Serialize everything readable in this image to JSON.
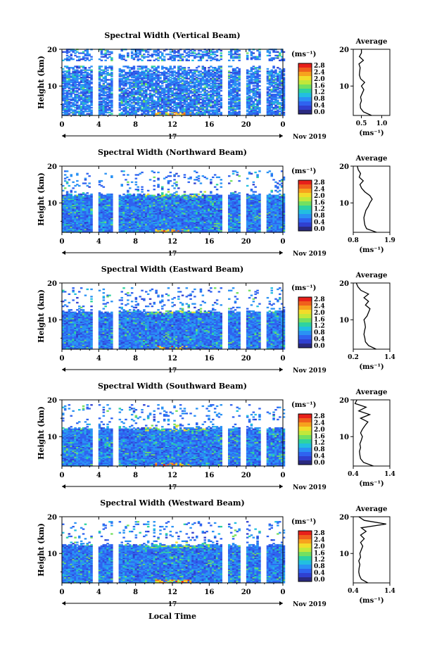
{
  "figure": {
    "xlabel": "Local Time",
    "date_label": "Nov 2019",
    "day_label": "17",
    "ylabel": "Height (km)",
    "cb_unit": "(ms⁻¹)",
    "cb_ticks": [
      "0.0",
      "0.4",
      "0.8",
      "1.2",
      "1.6",
      "2.0",
      "2.4",
      "2.8"
    ],
    "avg_title": "Average",
    "avg_unit": "(ms⁻¹)",
    "x_ticks": [
      "0",
      "4",
      "8",
      "12",
      "16",
      "20",
      "0"
    ],
    "y_ticks": [
      "10",
      "20"
    ],
    "colors": [
      "#2a2a80",
      "#3040d0",
      "#2f63f0",
      "#2a92f4",
      "#22bfe0",
      "#2ed3a0",
      "#74e060",
      "#c2e83a",
      "#f2dc2a",
      "#f7a21e",
      "#f0601c",
      "#e8201a"
    ]
  },
  "chart_data": [
    {
      "type": "heatmap",
      "title": "Spectral Width (Vertical Beam)",
      "xlim": [
        0,
        24
      ],
      "ylim": [
        2,
        20
      ],
      "value_range": [
        0.0,
        3.0
      ],
      "data_gaps_hours": [
        3.5,
        5.7,
        17.6,
        19.6,
        21.8
      ],
      "average_profile": {
        "xlim": [
          0.3,
          1.2
        ],
        "xticks": [
          "0.5",
          "1.0"
        ],
        "height_km": [
          2,
          3,
          4,
          5,
          6,
          7,
          8,
          9,
          10,
          11,
          12,
          13,
          14,
          15,
          16,
          17,
          18,
          19,
          20
        ],
        "value": [
          0.75,
          0.55,
          0.48,
          0.47,
          0.5,
          0.48,
          0.52,
          0.56,
          0.5,
          0.58,
          0.48,
          0.45,
          0.46,
          0.47,
          0.44,
          0.55,
          0.45,
          0.5,
          0.5
        ]
      }
    },
    {
      "type": "heatmap",
      "title": "Spectral Width (Northward Beam)",
      "xlim": [
        0,
        24
      ],
      "ylim": [
        2,
        20
      ],
      "value_range": [
        0.0,
        3.0
      ],
      "data_gaps_hours": [
        3.5,
        5.7,
        17.6,
        19.6,
        21.8
      ],
      "average_profile": {
        "xlim": [
          0.8,
          1.9
        ],
        "xticks": [
          "0.8",
          "1.9"
        ],
        "height_km": [
          2,
          3,
          4,
          5,
          6,
          7,
          8,
          9,
          10,
          11,
          12,
          13,
          14,
          15,
          16,
          17,
          18,
          19,
          20
        ],
        "value": [
          1.5,
          1.2,
          1.15,
          1.13,
          1.12,
          1.15,
          1.18,
          1.25,
          1.3,
          1.37,
          1.3,
          1.15,
          1.05,
          1.0,
          1.1,
          0.98,
          1.02,
          0.95,
          0.92
        ]
      }
    },
    {
      "type": "heatmap",
      "title": "Spectral Width (Eastward Beam)",
      "xlim": [
        0,
        24
      ],
      "ylim": [
        2,
        20
      ],
      "value_range": [
        0.0,
        3.0
      ],
      "data_gaps_hours": [
        3.5,
        5.7,
        17.6,
        19.6,
        21.8
      ],
      "average_profile": {
        "xlim": [
          0.2,
          1.4
        ],
        "xticks": [
          "0.2",
          "1.4"
        ],
        "height_km": [
          2,
          3,
          4,
          5,
          6,
          7,
          8,
          9,
          10,
          11,
          12,
          13,
          14,
          15,
          16,
          17,
          18,
          19,
          20
        ],
        "value": [
          0.95,
          0.7,
          0.6,
          0.58,
          0.55,
          0.57,
          0.6,
          0.58,
          0.55,
          0.65,
          0.7,
          0.75,
          0.6,
          0.7,
          0.55,
          0.7,
          0.45,
          0.35,
          0.3
        ]
      }
    },
    {
      "type": "heatmap",
      "title": "Spectral Width (Southward Beam)",
      "xlim": [
        0,
        24
      ],
      "ylim": [
        2,
        20
      ],
      "value_range": [
        0.0,
        3.0
      ],
      "data_gaps_hours": [
        3.5,
        5.7,
        17.6,
        19.6,
        21.8
      ],
      "average_profile": {
        "xlim": [
          0.4,
          1.4
        ],
        "xticks": [
          "0.4",
          "1.4"
        ],
        "height_km": [
          2,
          3,
          4,
          5,
          6,
          7,
          8,
          9,
          10,
          11,
          12,
          13,
          14,
          15,
          16,
          17,
          18,
          19,
          20
        ],
        "value": [
          0.95,
          0.68,
          0.6,
          0.58,
          0.57,
          0.6,
          0.58,
          0.62,
          0.65,
          0.6,
          0.65,
          0.72,
          0.8,
          0.6,
          0.85,
          0.55,
          0.75,
          0.45,
          0.5
        ]
      }
    },
    {
      "type": "heatmap",
      "title": "Spectral Width (Westward Beam)",
      "xlim": [
        0,
        24
      ],
      "ylim": [
        2,
        20
      ],
      "value_range": [
        0.0,
        3.0
      ],
      "data_gaps_hours": [
        3.5,
        5.7,
        17.6,
        19.6,
        21.8
      ],
      "average_profile": {
        "xlim": [
          0.4,
          1.4
        ],
        "xticks": [
          "0.4",
          "1.4"
        ],
        "height_km": [
          2,
          3,
          4,
          5,
          6,
          7,
          8,
          9,
          10,
          11,
          12,
          13,
          14,
          15,
          16,
          17,
          18,
          19,
          20
        ],
        "value": [
          0.8,
          0.62,
          0.57,
          0.55,
          0.56,
          0.58,
          0.55,
          0.6,
          0.58,
          0.62,
          0.66,
          0.6,
          0.7,
          0.6,
          0.75,
          0.62,
          1.3,
          0.7,
          0.55
        ]
      }
    }
  ]
}
